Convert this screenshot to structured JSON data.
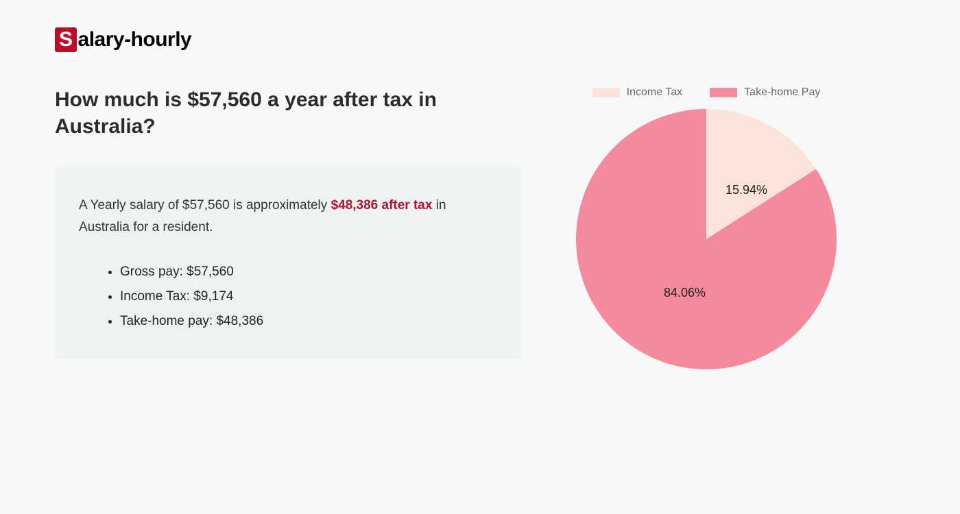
{
  "logo": {
    "s": "S",
    "rest": "alary-hourly"
  },
  "title": "How much is $57,560 a year after tax in Australia?",
  "summary": {
    "pre": "A Yearly salary of $57,560 is approximately ",
    "highlight": "$48,386 after tax",
    "post": " in Australia for a resident."
  },
  "bullets": [
    "Gross pay: $57,560",
    "Income Tax: $9,174",
    "Take-home pay: $48,386"
  ],
  "chart": {
    "type": "pie",
    "radius": 190,
    "background_color": "#f7f8f9",
    "legend_text_color": "#666666",
    "label_text_color": "#222222",
    "label_fontsize": 18,
    "slices": [
      {
        "name": "Income Tax",
        "pct": 15.94,
        "label": "15.94%",
        "color": "#fbe3d9"
      },
      {
        "name": "Take-home Pay",
        "pct": 84.06,
        "label": "84.06%",
        "color": "#f48a9c"
      }
    ],
    "legend": [
      {
        "label": "Income Tax",
        "color": "#fbe3d9"
      },
      {
        "label": "Take-home Pay",
        "color": "#f48a9c"
      }
    ]
  },
  "colors": {
    "brand_red": "#b90e2e",
    "box_bg": "#eef2f3"
  }
}
